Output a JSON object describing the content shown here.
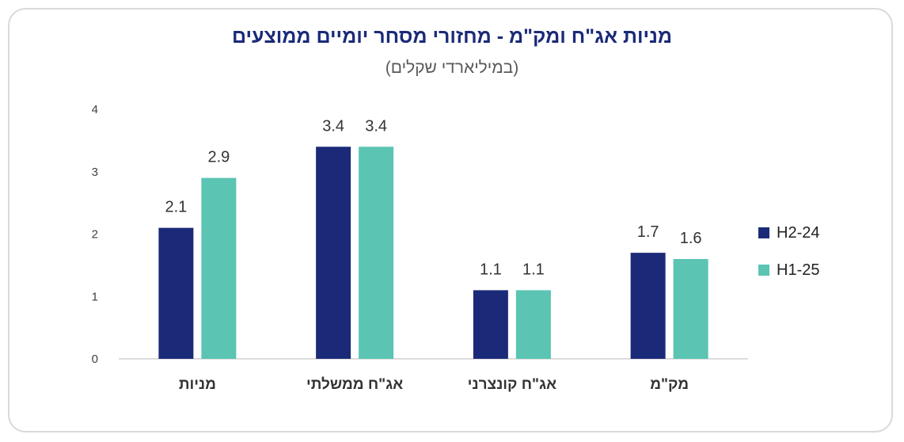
{
  "chart_data": {
    "type": "bar",
    "title": "מניות אג\"ח ומק\"מ - מחזורי מסחר יומיים ממוצעים",
    "subtitle": "(במיליארדי שקלים)",
    "categories": [
      "מניות",
      "אג\"ח ממשלתי",
      "אג\"ח קונצרני",
      "מק\"מ"
    ],
    "series": [
      {
        "name": "H2-24",
        "values": [
          2.1,
          3.4,
          1.1,
          1.7
        ],
        "labels": [
          "2.1",
          "3.4",
          "1.1",
          "1.7"
        ],
        "color": "#1b2a78"
      },
      {
        "name": "H1-25",
        "values": [
          2.9,
          3.4,
          1.1,
          1.6
        ],
        "labels": [
          "2.9",
          "3.4",
          "1.1",
          "1.6"
        ],
        "color": "#5bc4b3"
      }
    ],
    "yticks": [
      "0",
      "1",
      "2",
      "3",
      "4"
    ],
    "ylim": [
      0,
      4
    ],
    "grid": false,
    "legend_position": "right"
  }
}
